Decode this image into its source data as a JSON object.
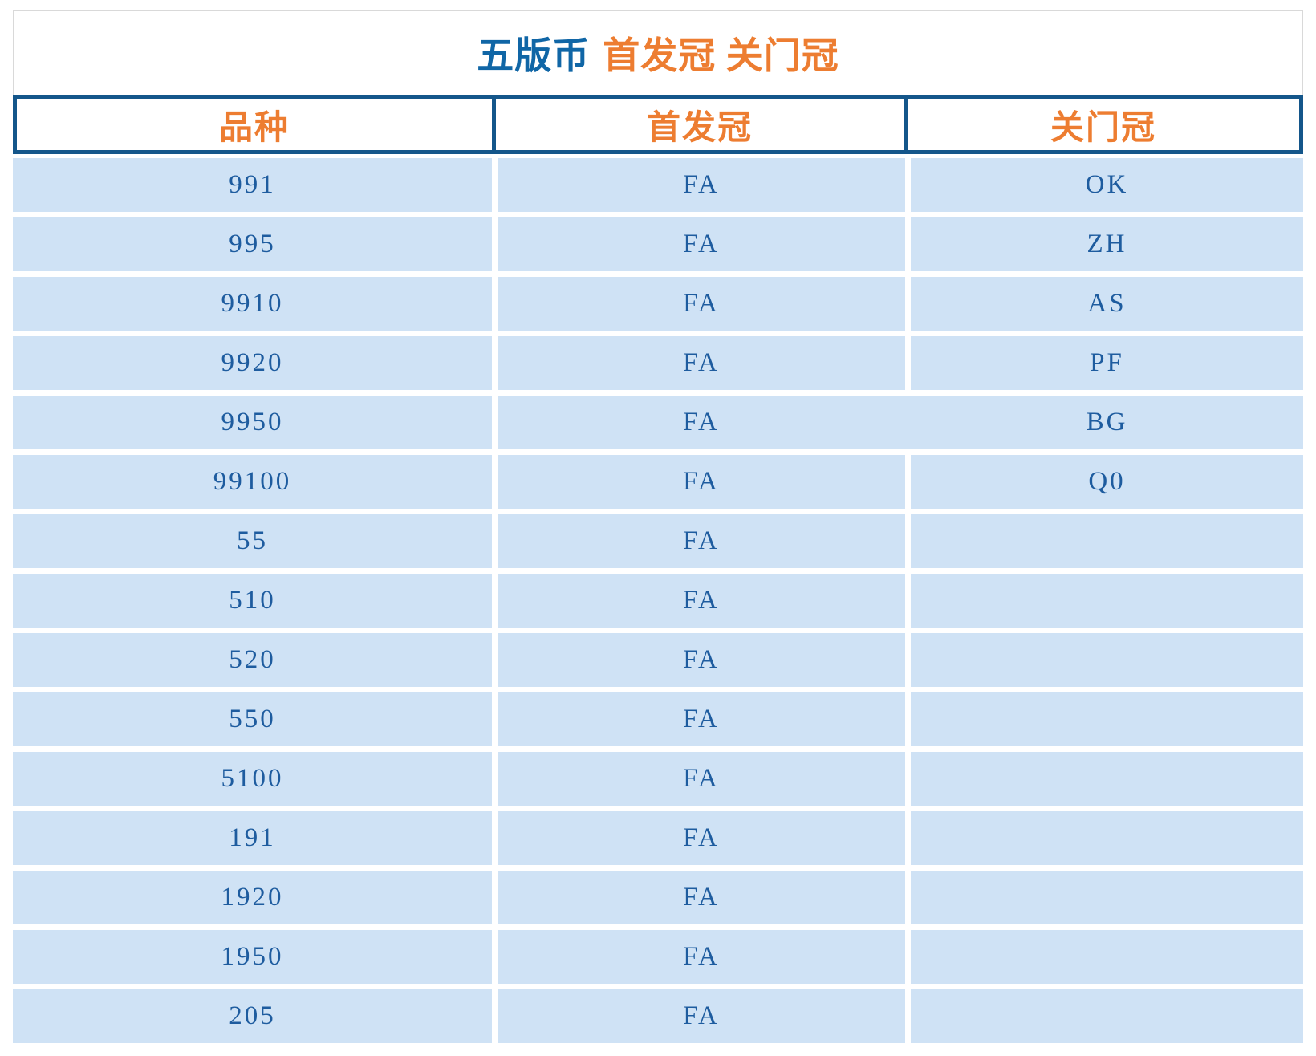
{
  "title": {
    "series": "五版币",
    "subtitle": "首发冠 关门冠"
  },
  "header": {
    "col_variety": "品种",
    "col_first": "首发冠",
    "col_last": "关门冠"
  },
  "rows": [
    {
      "variety": "991",
      "first_prefix": "FA",
      "last_prefix": "OK"
    },
    {
      "variety": "995",
      "first_prefix": "FA",
      "last_prefix": "ZH"
    },
    {
      "variety": "9910",
      "first_prefix": "FA",
      "last_prefix": "AS"
    },
    {
      "variety": "9920",
      "first_prefix": "FA",
      "last_prefix": "PF"
    },
    {
      "variety": "9950",
      "first_prefix": "FA",
      "last_prefix": "BG",
      "merged": true
    },
    {
      "variety": "99100",
      "first_prefix": "FA",
      "last_prefix": "Q0"
    },
    {
      "variety": "55",
      "first_prefix": "FA",
      "last_prefix": ""
    },
    {
      "variety": "510",
      "first_prefix": "FA",
      "last_prefix": ""
    },
    {
      "variety": "520",
      "first_prefix": "FA",
      "last_prefix": ""
    },
    {
      "variety": "550",
      "first_prefix": "FA",
      "last_prefix": ""
    },
    {
      "variety": "5100",
      "first_prefix": "FA",
      "last_prefix": ""
    },
    {
      "variety": "191",
      "first_prefix": "FA",
      "last_prefix": ""
    },
    {
      "variety": "1920",
      "first_prefix": "FA",
      "last_prefix": ""
    },
    {
      "variety": "1950",
      "first_prefix": "FA",
      "last_prefix": ""
    },
    {
      "variety": "205",
      "first_prefix": "FA",
      "last_prefix": ""
    }
  ],
  "colors": {
    "accent_orange": "#ED7D31",
    "title_blue": "#1066A6",
    "border_blue": "#14568A",
    "cell_text_blue": "#1E5C9F",
    "row_bg_blue": "#CFE2F5",
    "title_border_gray": "#D9D9D9"
  }
}
